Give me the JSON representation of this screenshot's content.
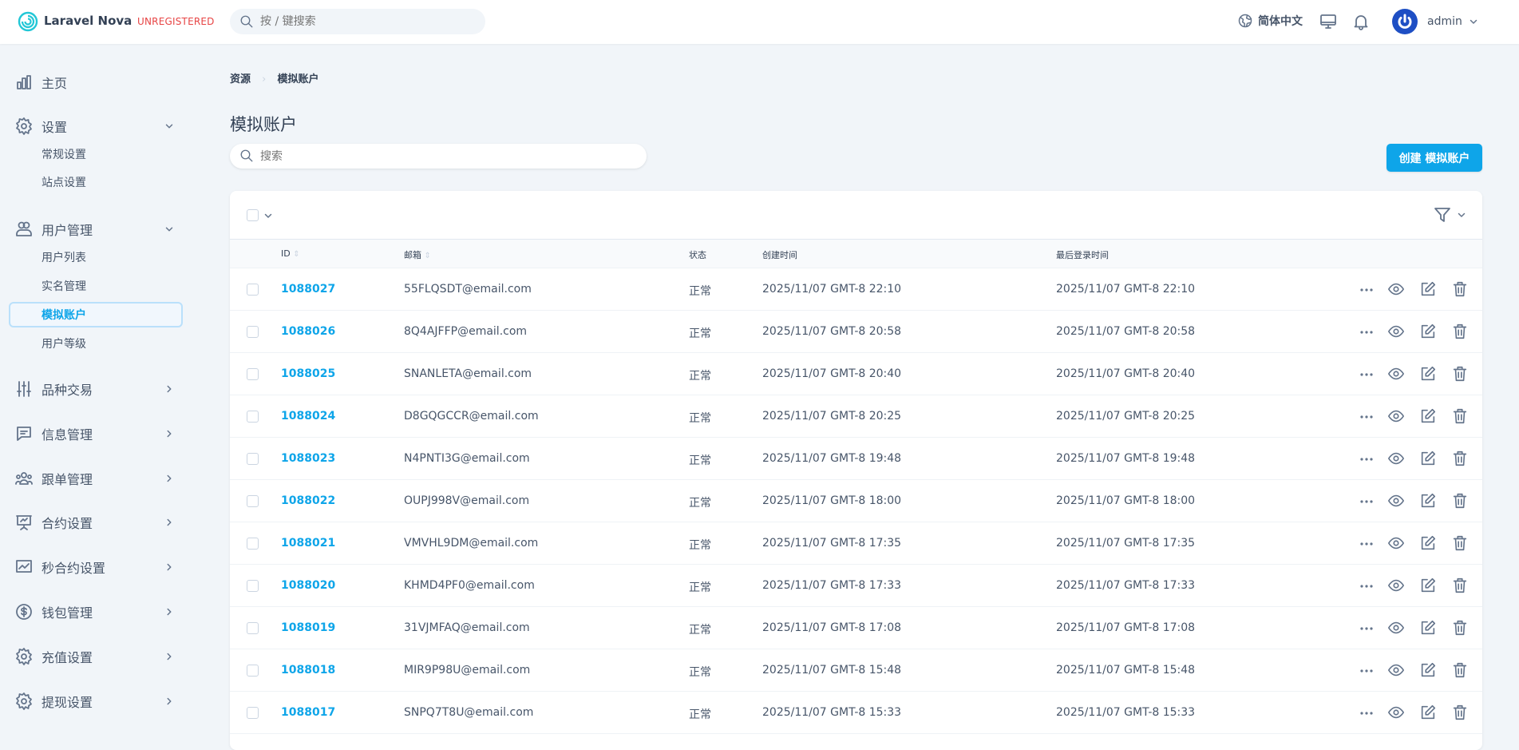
{
  "header": {
    "brand": "Laravel Nova",
    "badge": "UNREGISTERED",
    "search_placeholder": "按 / 键搜索",
    "language": "简体中文",
    "user": "admin"
  },
  "colors": {
    "accent": "#0ea5e9",
    "badge": "#e74444",
    "avatar": "#1e4fc4"
  },
  "sidebar": {
    "items": [
      {
        "label": "主页",
        "icon": "chart-bar-icon"
      },
      {
        "label": "设置",
        "icon": "gear-icon",
        "expanded": true,
        "children": [
          "常规设置",
          "站点设置"
        ]
      },
      {
        "label": "用户管理",
        "icon": "users-icon",
        "expanded": true,
        "children": [
          "用户列表",
          "实名管理",
          "模拟账户",
          "用户等级"
        ],
        "active_child": "模拟账户"
      },
      {
        "label": "品种交易",
        "icon": "sliders-icon"
      },
      {
        "label": "信息管理",
        "icon": "chat-icon"
      },
      {
        "label": "跟单管理",
        "icon": "user-group-icon"
      },
      {
        "label": "合约设置",
        "icon": "presentation-chart-icon"
      },
      {
        "label": "秒合约设置",
        "icon": "trending-chart-icon"
      },
      {
        "label": "钱包管理",
        "icon": "currency-dollar-icon"
      },
      {
        "label": "充值设置",
        "icon": "gear-icon"
      },
      {
        "label": "提现设置",
        "icon": "gear-icon"
      }
    ]
  },
  "breadcrumb": [
    "资源",
    "模拟账户"
  ],
  "page": {
    "title": "模拟账户",
    "search_placeholder": "搜索",
    "create_label": "创建 模拟账户"
  },
  "table": {
    "columns": [
      "ID",
      "邮箱",
      "状态",
      "创建时间",
      "最后登录时间"
    ],
    "rows": [
      {
        "id": "1088027",
        "email": "55FLQSDT@email.com",
        "status": "正常",
        "created": "2025/11/07 GMT-8 22:10",
        "last_login": "2025/11/07 GMT-8 22:10"
      },
      {
        "id": "1088026",
        "email": "8Q4AJFFP@email.com",
        "status": "正常",
        "created": "2025/11/07 GMT-8 20:58",
        "last_login": "2025/11/07 GMT-8 20:58"
      },
      {
        "id": "1088025",
        "email": "SNANLETA@email.com",
        "status": "正常",
        "created": "2025/11/07 GMT-8 20:40",
        "last_login": "2025/11/07 GMT-8 20:40"
      },
      {
        "id": "1088024",
        "email": "D8GQGCCR@email.com",
        "status": "正常",
        "created": "2025/11/07 GMT-8 20:25",
        "last_login": "2025/11/07 GMT-8 20:25"
      },
      {
        "id": "1088023",
        "email": "N4PNTI3G@email.com",
        "status": "正常",
        "created": "2025/11/07 GMT-8 19:48",
        "last_login": "2025/11/07 GMT-8 19:48"
      },
      {
        "id": "1088022",
        "email": "OUPJ998V@email.com",
        "status": "正常",
        "created": "2025/11/07 GMT-8 18:00",
        "last_login": "2025/11/07 GMT-8 18:00"
      },
      {
        "id": "1088021",
        "email": "VMVHL9DM@email.com",
        "status": "正常",
        "created": "2025/11/07 GMT-8 17:35",
        "last_login": "2025/11/07 GMT-8 17:35"
      },
      {
        "id": "1088020",
        "email": "KHMD4PF0@email.com",
        "status": "正常",
        "created": "2025/11/07 GMT-8 17:33",
        "last_login": "2025/11/07 GMT-8 17:33"
      },
      {
        "id": "1088019",
        "email": "31VJMFAQ@email.com",
        "status": "正常",
        "created": "2025/11/07 GMT-8 17:08",
        "last_login": "2025/11/07 GMT-8 17:08"
      },
      {
        "id": "1088018",
        "email": "MIR9P98U@email.com",
        "status": "正常",
        "created": "2025/11/07 GMT-8 15:48",
        "last_login": "2025/11/07 GMT-8 15:48"
      },
      {
        "id": "1088017",
        "email": "SNPQ7T8U@email.com",
        "status": "正常",
        "created": "2025/11/07 GMT-8 15:33",
        "last_login": "2025/11/07 GMT-8 15:33"
      }
    ]
  }
}
